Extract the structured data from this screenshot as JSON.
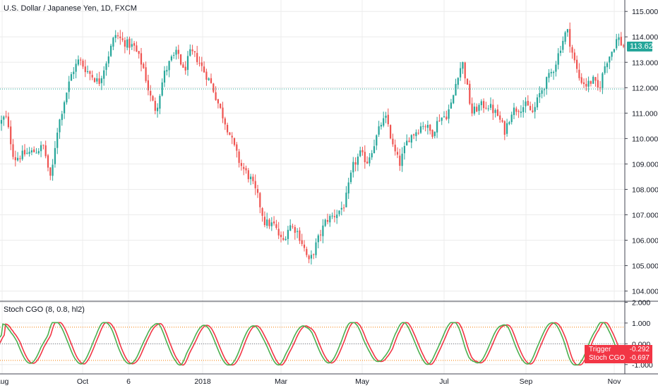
{
  "colors": {
    "background": "#ffffff",
    "grid": "#ececec",
    "axis_text": "#131722",
    "candle_up": "#26a69a",
    "candle_down": "#ef5350",
    "prev_close_line": "#26a69a",
    "stoch_line": "#4caf50",
    "trigger_line": "#f23645",
    "level_line": "#f57c00",
    "last_price_tag": "#26a69a",
    "osc_tag": "#f23645"
  },
  "chart_data": [
    {
      "type": "candlestick",
      "title": "U.S. Dollar / Japanese Yen, 1D, FXCM",
      "x_tick_labels": [
        "Aug",
        "Oct",
        "6",
        "2018",
        "Mar",
        "May",
        "Jul",
        "Sep",
        "Nov"
      ],
      "y_tick_labels": [
        "104.000",
        "105.000",
        "106.000",
        "107.000",
        "108.000",
        "109.000",
        "110.000",
        "111.000",
        "112.000",
        "113.000",
        "114.000",
        "115.000"
      ],
      "ylim": [
        103.6,
        115.45
      ],
      "grid": true,
      "last_price": 113.623,
      "last_price_label": "113.623",
      "reference_line": 111.95,
      "price_path": [
        [
          0,
          110.6
        ],
        [
          8,
          110.9
        ],
        [
          20,
          109.2
        ],
        [
          35,
          109.4
        ],
        [
          50,
          109.5
        ],
        [
          62,
          109.7
        ],
        [
          72,
          108.3
        ],
        [
          80,
          110.2
        ],
        [
          92,
          111.6
        ],
        [
          102,
          112.6
        ],
        [
          112,
          113.1
        ],
        [
          122,
          112.7
        ],
        [
          140,
          112.2
        ],
        [
          155,
          113.4
        ],
        [
          163,
          114.1
        ],
        [
          175,
          113.8
        ],
        [
          190,
          113.6
        ],
        [
          203,
          112.8
        ],
        [
          212,
          111.7
        ],
        [
          221,
          111.1
        ],
        [
          232,
          112.5
        ],
        [
          242,
          113.1
        ],
        [
          252,
          113.4
        ],
        [
          260,
          112.6
        ],
        [
          270,
          113.4
        ],
        [
          278,
          113.2
        ],
        [
          290,
          112.6
        ],
        [
          300,
          112.1
        ],
        [
          310,
          111.3
        ],
        [
          325,
          110.2
        ],
        [
          340,
          109.0
        ],
        [
          355,
          108.4
        ],
        [
          365,
          107.7
        ],
        [
          375,
          106.7
        ],
        [
          388,
          106.6
        ],
        [
          400,
          105.9
        ],
        [
          410,
          106.6
        ],
        [
          420,
          106.4
        ],
        [
          428,
          105.9
        ],
        [
          438,
          105.1
        ],
        [
          450,
          106.0
        ],
        [
          462,
          106.8
        ],
        [
          475,
          107.0
        ],
        [
          488,
          107.4
        ],
        [
          500,
          108.9
        ],
        [
          510,
          109.4
        ],
        [
          520,
          109.1
        ],
        [
          530,
          109.8
        ],
        [
          540,
          110.6
        ],
        [
          548,
          110.8
        ],
        [
          556,
          109.7
        ],
        [
          566,
          109.0
        ],
        [
          578,
          110.0
        ],
        [
          590,
          110.3
        ],
        [
          600,
          110.6
        ],
        [
          612,
          110.2
        ],
        [
          622,
          110.8
        ],
        [
          632,
          110.9
        ],
        [
          640,
          111.4
        ],
        [
          648,
          112.5
        ],
        [
          655,
          113.0
        ],
        [
          660,
          112.3
        ],
        [
          668,
          111.0
        ],
        [
          680,
          111.3
        ],
        [
          692,
          111.3
        ],
        [
          705,
          110.9
        ],
        [
          715,
          110.3
        ],
        [
          725,
          111.1
        ],
        [
          735,
          111.2
        ],
        [
          745,
          111.3
        ],
        [
          755,
          111.0
        ],
        [
          765,
          111.8
        ],
        [
          775,
          112.3
        ],
        [
          785,
          112.8
        ],
        [
          795,
          113.7
        ],
        [
          803,
          114.3
        ],
        [
          812,
          113.2
        ],
        [
          820,
          112.4
        ],
        [
          830,
          112.1
        ],
        [
          840,
          112.3
        ],
        [
          848,
          111.9
        ],
        [
          858,
          113.0
        ],
        [
          866,
          113.4
        ],
        [
          875,
          114.0
        ],
        [
          882,
          113.62
        ]
      ]
    },
    {
      "type": "line",
      "title": "Stoch CGO (8, 0.8, hl2)",
      "y_tick_labels": [
        "-1.000",
        "0.000",
        "1.000",
        "2.000"
      ],
      "ylim": [
        -1.45,
        2.05
      ],
      "levels": [
        0.8,
        -0.8
      ],
      "series": [
        {
          "name": "Stoch CGO",
          "last_value": "-0.697"
        },
        {
          "name": "Trigger",
          "last_value": "-0.292"
        }
      ]
    }
  ]
}
